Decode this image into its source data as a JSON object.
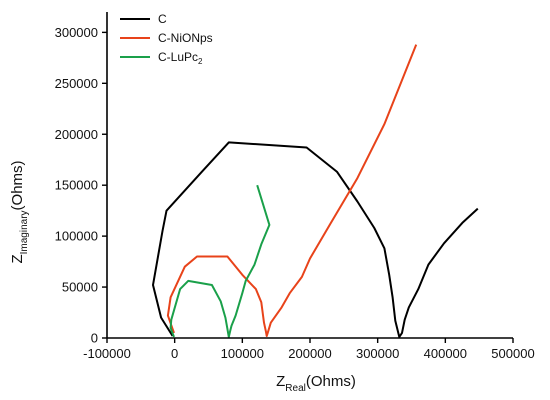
{
  "chart_data": {
    "type": "line",
    "xlabel": {
      "main": "Z",
      "sub": "Real",
      "tail": "(Ohms)"
    },
    "ylabel": {
      "main": "Z",
      "sub": "Imaginary",
      "tail": "(Ohms)"
    },
    "xlim": [
      -100000,
      500000
    ],
    "ylim": [
      0,
      320000
    ],
    "x_ticks": [
      -100000,
      0,
      100000,
      200000,
      300000,
      400000,
      500000
    ],
    "y_ticks": [
      0,
      50000,
      100000,
      150000,
      200000,
      250000,
      300000
    ],
    "x_tick_labels": [
      "-100000",
      "0",
      "100000",
      "200000",
      "300000",
      "400000",
      "500000"
    ],
    "y_tick_labels": [
      "0",
      "50000",
      "100000",
      "150000",
      "200000",
      "250000",
      "300000"
    ],
    "grid": false,
    "legend_position": "top-left",
    "series": [
      {
        "name": "C",
        "legend": {
          "main": "C",
          "sub": ""
        },
        "color": "#000000",
        "points": [
          [
            -3000,
            2000
          ],
          [
            -20000,
            20000
          ],
          [
            -32000,
            52000
          ],
          [
            -18000,
            105000
          ],
          [
            -12000,
            125000
          ],
          [
            40000,
            163000
          ],
          [
            80000,
            192000
          ],
          [
            195000,
            187000
          ],
          [
            240000,
            163000
          ],
          [
            270000,
            134000
          ],
          [
            295000,
            108000
          ],
          [
            310000,
            88000
          ],
          [
            317000,
            62000
          ],
          [
            322000,
            40000
          ],
          [
            326000,
            17000
          ],
          [
            332000,
            1000
          ],
          [
            336000,
            5000
          ],
          [
            340000,
            18000
          ],
          [
            346000,
            30000
          ],
          [
            360000,
            48000
          ],
          [
            375000,
            72000
          ],
          [
            398000,
            93000
          ],
          [
            425000,
            113000
          ],
          [
            448000,
            127000
          ]
        ]
      },
      {
        "name": "C-NiONps",
        "legend": {
          "main": "C-NiONps",
          "sub": ""
        },
        "color": "#e8431a",
        "points": [
          [
            -1000,
            5000
          ],
          [
            -10000,
            22000
          ],
          [
            -6000,
            40000
          ],
          [
            15000,
            70000
          ],
          [
            33000,
            80000
          ],
          [
            78000,
            80000
          ],
          [
            100000,
            62000
          ],
          [
            120000,
            48000
          ],
          [
            128000,
            35000
          ],
          [
            132000,
            15000
          ],
          [
            135000,
            6000
          ],
          [
            136000,
            2000
          ],
          [
            137000,
            4000
          ],
          [
            142000,
            15000
          ],
          [
            158000,
            30000
          ],
          [
            170000,
            44000
          ],
          [
            188000,
            60000
          ],
          [
            200000,
            78000
          ],
          [
            230000,
            112000
          ],
          [
            270000,
            157000
          ],
          [
            310000,
            210000
          ],
          [
            357000,
            288000
          ]
        ]
      },
      {
        "name": "C-LuPc2",
        "legend": {
          "main": "C-LuPc",
          "sub": "2"
        },
        "color": "#1aa04a",
        "points": [
          [
            -1000,
            1000
          ],
          [
            -6000,
            10000
          ],
          [
            -5000,
            18000
          ],
          [
            8000,
            48000
          ],
          [
            20000,
            56000
          ],
          [
            55000,
            52000
          ],
          [
            68000,
            36000
          ],
          [
            75000,
            20000
          ],
          [
            78000,
            9000
          ],
          [
            79000,
            5000
          ],
          [
            80000,
            1000
          ],
          [
            82000,
            7000
          ],
          [
            84000,
            12000
          ],
          [
            90000,
            22000
          ],
          [
            100000,
            44000
          ],
          [
            105000,
            56000
          ],
          [
            118000,
            72000
          ],
          [
            128000,
            92000
          ],
          [
            140000,
            111000
          ],
          [
            122000,
            150000
          ]
        ]
      }
    ]
  }
}
